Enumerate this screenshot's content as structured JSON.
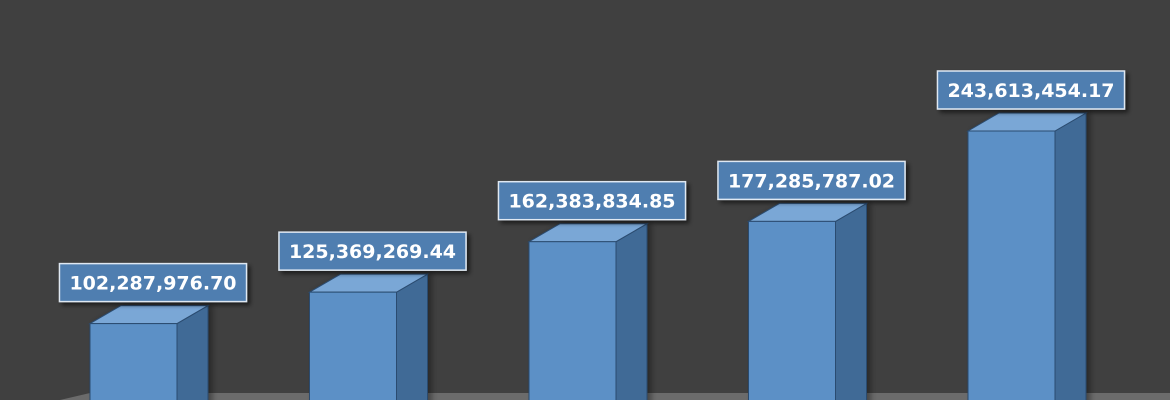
{
  "chart_data": {
    "type": "bar",
    "style": "3d-column",
    "categories": [
      "",
      "",
      "",
      "",
      ""
    ],
    "values": [
      102287976.7,
      125369269.44,
      162383834.85,
      177285787.02,
      243613454.17
    ],
    "data_labels": [
      "102,287,976.70",
      "125,369,269.44",
      "162,383,834.85",
      "177,285,787.02",
      "243,613,454.17"
    ],
    "title": "",
    "xlabel": "",
    "ylabel": "",
    "ylim": [
      0,
      260000000
    ],
    "grid": false,
    "legend": "none"
  },
  "colors": {
    "background": "#404040",
    "bar_front": "#5b90c6",
    "bar_side": "#3f6a96",
    "bar_top": "#7aa7d6",
    "bar_edge": "#2c4c70",
    "label_fill": "#4f7eb0",
    "label_border": "#dfe8f2",
    "label_text": "#ffffff",
    "floor": "#6b6b6b"
  }
}
